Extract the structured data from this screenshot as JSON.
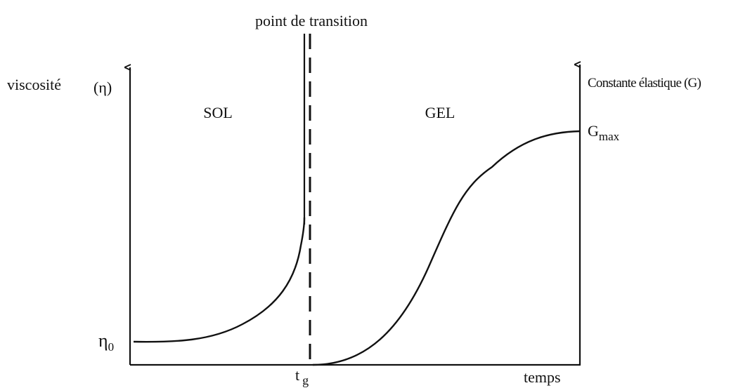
{
  "labels": {
    "transition": "point de transition",
    "y_left": {
      "name": "viscosité",
      "symbol": "(η)"
    },
    "y_right": "Constante élastique (G)",
    "sol": "SOL",
    "gel": "GEL",
    "g_max": {
      "base": "G",
      "sub": "max"
    },
    "eta_0": {
      "base": "η",
      "sub": "0"
    },
    "t_g": {
      "base": "t",
      "sub": "g"
    },
    "x_axis": "temps"
  }
}
